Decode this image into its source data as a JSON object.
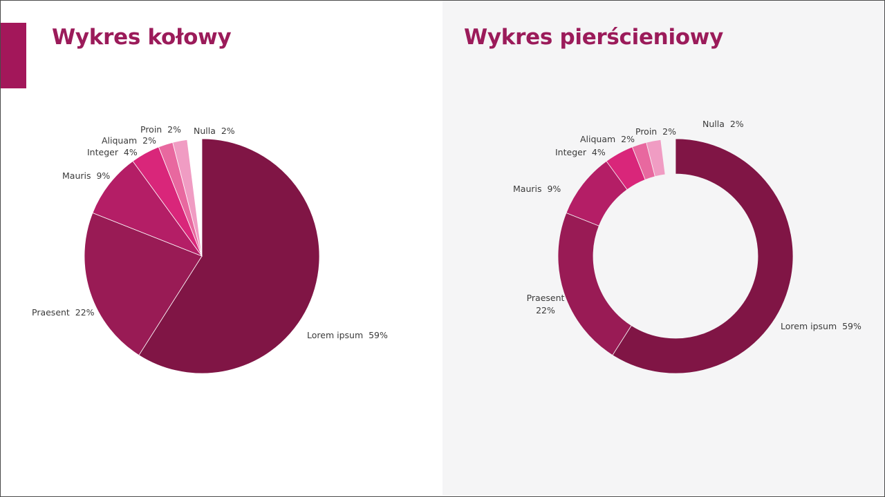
{
  "left_panel": {
    "title": "Wykres kołowy"
  },
  "right_panel": {
    "title": "Wykres pierścieniowy"
  },
  "colors": {
    "accent": "#a3175a",
    "title": "#9b1b5a",
    "slice_lorem": "#801545",
    "slice_praesent": "#991b55",
    "slice_mauris": "#b41e66",
    "slice_integer": "#d9267a",
    "slice_aliquam": "#e8689f",
    "slice_proin": "#f09cc3",
    "slice_nulla": "#ffffff"
  },
  "labels": {
    "pie": {
      "lorem": "Lorem ipsum  59%",
      "praesent": "Praesent  22%",
      "mauris": "Mauris  9%",
      "integer": "Integer  4%",
      "aliquam": "Aliquam  2%",
      "proin": "Proin  2%",
      "nulla": "Nulla  2%"
    },
    "donut": {
      "lorem": "Lorem ipsum  59%",
      "praesent_name": "Praesent",
      "praesent_value": "22%",
      "mauris": "Mauris  9%",
      "integer": "Integer  4%",
      "aliquam": "Aliquam  2%",
      "proin": "Proin  2%",
      "nulla": "Nulla  2%"
    }
  },
  "chart_data": [
    {
      "type": "pie",
      "title": "Wykres kołowy",
      "categories": [
        "Lorem ipsum",
        "Praesent",
        "Mauris",
        "Integer",
        "Aliquam",
        "Proin",
        "Nulla"
      ],
      "values": [
        59,
        22,
        9,
        4,
        2,
        2,
        2
      ],
      "unit": "%",
      "start_angle": "top, clockwise"
    },
    {
      "type": "pie",
      "subtype": "donut",
      "title": "Wykres pierścieniowy",
      "categories": [
        "Lorem ipsum",
        "Praesent",
        "Mauris",
        "Integer",
        "Aliquam",
        "Proin",
        "Nulla"
      ],
      "values": [
        59,
        22,
        9,
        4,
        2,
        2,
        2
      ],
      "unit": "%",
      "start_angle": "top, clockwise"
    }
  ]
}
